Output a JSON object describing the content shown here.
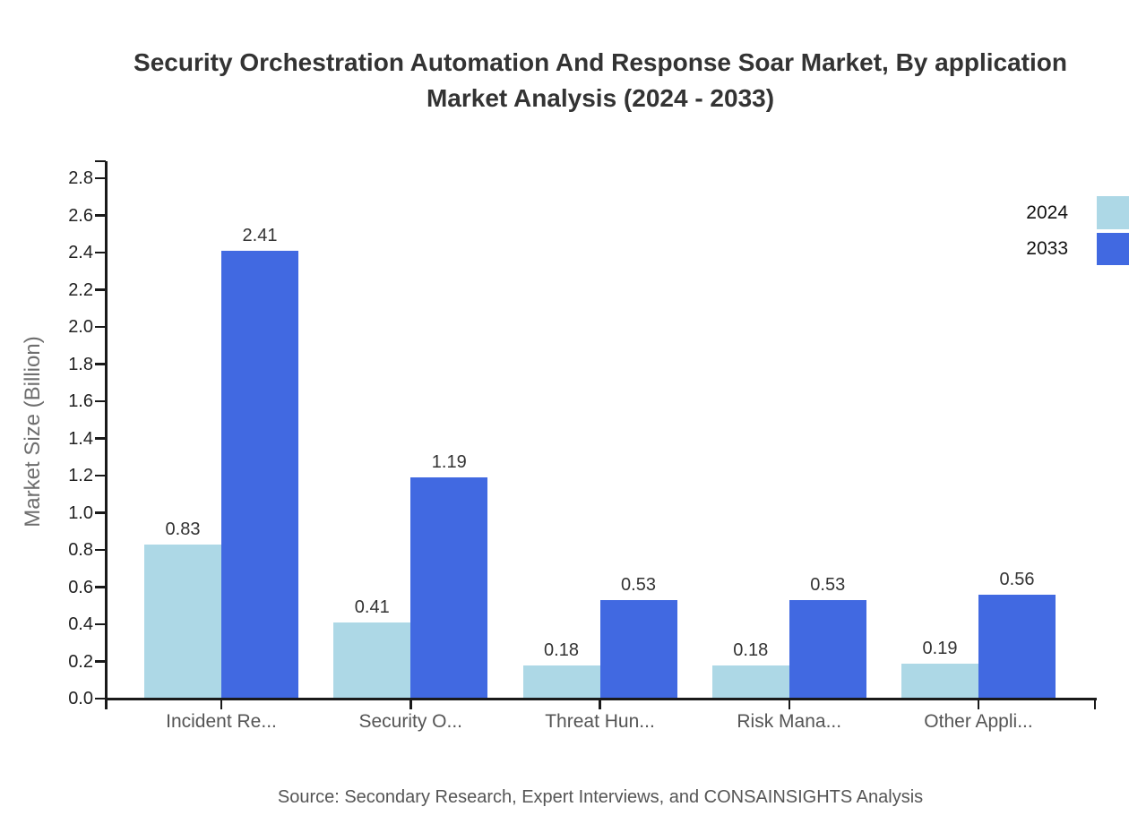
{
  "title": {
    "line1": "Security Orchestration Automation And Response Soar Market, By application",
    "line2": "Market Analysis (2024 - 2033)"
  },
  "chart_data": {
    "type": "bar",
    "categories": [
      "Incident Re...",
      "Security O...",
      "Threat Hun...",
      "Risk Mana...",
      "Other Appli..."
    ],
    "series": [
      {
        "name": "2024",
        "color": "#ADD8E6",
        "values": [
          0.83,
          0.41,
          0.18,
          0.18,
          0.19
        ]
      },
      {
        "name": "2033",
        "color": "#4169E1",
        "values": [
          2.41,
          1.19,
          0.53,
          0.53,
          0.56
        ]
      }
    ],
    "title": "Security Orchestration Automation And Response Soar Market, By application Market Analysis (2024 - 2033)",
    "xlabel": "",
    "ylabel": "Market Size (Billion)",
    "ylim": [
      0,
      2.8
    ],
    "ytick_step": 0.2,
    "grid": false,
    "legend_position": "top-right",
    "value_label_decimals": 2
  },
  "legend": {
    "items": [
      {
        "label": "2024",
        "color": "#ADD8E6"
      },
      {
        "label": "2033",
        "color": "#4169E1"
      }
    ]
  },
  "source_note": "Source: Secondary Research, Expert Interviews, and CONSAINSIGHTS Analysis",
  "colors": {
    "axis": "#1a1a1a",
    "tick_label": "#222222",
    "category_label": "#555555",
    "value_label": "#333333",
    "axis_title": "#6e6e6e",
    "title": "#333333",
    "source": "#555555",
    "background": "#ffffff"
  }
}
